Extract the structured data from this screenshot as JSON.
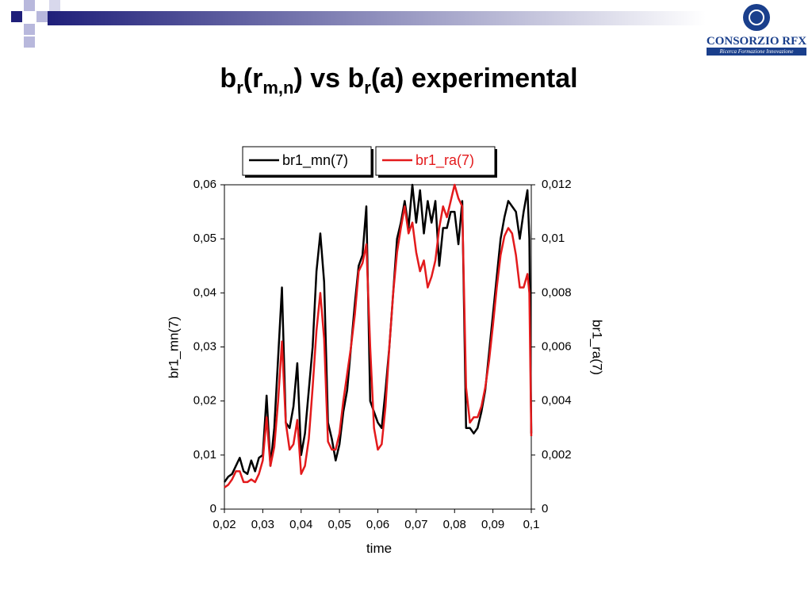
{
  "logo": {
    "name": "CONSORZIO RFX",
    "tagline": "Ricerca Formazione Innovazione"
  },
  "chart_data": {
    "type": "line",
    "title_parts": [
      {
        "text": "b"
      },
      {
        "text": "r",
        "sub": true
      },
      {
        "text": "(r"
      },
      {
        "text": "m,n",
        "sub": true
      },
      {
        "text": ") vs b"
      },
      {
        "text": "r",
        "sub": true
      },
      {
        "text": "(a)  experimental"
      }
    ],
    "xlabel": "time",
    "ylabel": "br1_mn(7)",
    "y2label": "br1_ra(7)",
    "legend": "top",
    "x": [
      0.02,
      0.021,
      0.022,
      0.023,
      0.024,
      0.025,
      0.026,
      0.027,
      0.028,
      0.029,
      0.03,
      0.031,
      0.032,
      0.033,
      0.034,
      0.035,
      0.036,
      0.037,
      0.038,
      0.039,
      0.04,
      0.041,
      0.042,
      0.043,
      0.044,
      0.045,
      0.046,
      0.047,
      0.048,
      0.049,
      0.05,
      0.051,
      0.052,
      0.053,
      0.054,
      0.055,
      0.056,
      0.057,
      0.058,
      0.059,
      0.06,
      0.061,
      0.062,
      0.063,
      0.064,
      0.065,
      0.066,
      0.067,
      0.068,
      0.069,
      0.07,
      0.071,
      0.072,
      0.073,
      0.074,
      0.075,
      0.076,
      0.077,
      0.078,
      0.079,
      0.08,
      0.081,
      0.082,
      0.083,
      0.084,
      0.085,
      0.086,
      0.087,
      0.088,
      0.089,
      0.09,
      0.091,
      0.092,
      0.093,
      0.094,
      0.095,
      0.096,
      0.097,
      0.098,
      0.099,
      0.0995,
      0.1
    ],
    "series": [
      {
        "name": "br1_mn(7)",
        "color": "#000000",
        "axis": "y",
        "values": [
          0.005,
          0.006,
          0.0065,
          0.008,
          0.0095,
          0.007,
          0.0065,
          0.009,
          0.007,
          0.0095,
          0.01,
          0.021,
          0.008,
          0.015,
          0.028,
          0.041,
          0.016,
          0.015,
          0.019,
          0.027,
          0.01,
          0.014,
          0.022,
          0.03,
          0.044,
          0.051,
          0.042,
          0.016,
          0.013,
          0.009,
          0.012,
          0.018,
          0.022,
          0.03,
          0.038,
          0.045,
          0.047,
          0.056,
          0.02,
          0.018,
          0.016,
          0.015,
          0.022,
          0.03,
          0.04,
          0.05,
          0.053,
          0.057,
          0.052,
          0.06,
          0.053,
          0.059,
          0.051,
          0.057,
          0.053,
          0.057,
          0.045,
          0.052,
          0.052,
          0.055,
          0.055,
          0.049,
          0.057,
          0.015,
          0.015,
          0.014,
          0.015,
          0.018,
          0.022,
          0.029,
          0.036,
          0.043,
          0.05,
          0.054,
          0.057,
          0.056,
          0.055,
          0.05,
          0.055,
          0.059,
          0.05,
          0.014
        ]
      },
      {
        "name": "br1_ra(7)",
        "color": "#e31a1c",
        "axis": "y2",
        "values": [
          0.0008,
          0.0009,
          0.0011,
          0.0014,
          0.0014,
          0.001,
          0.001,
          0.0011,
          0.001,
          0.0013,
          0.0018,
          0.0034,
          0.0016,
          0.0023,
          0.004,
          0.0062,
          0.0032,
          0.0022,
          0.0024,
          0.0033,
          0.0013,
          0.0016,
          0.0026,
          0.0045,
          0.0066,
          0.008,
          0.0063,
          0.0025,
          0.0022,
          0.0022,
          0.0028,
          0.004,
          0.005,
          0.006,
          0.0072,
          0.0088,
          0.0091,
          0.0098,
          0.006,
          0.003,
          0.0022,
          0.0024,
          0.0038,
          0.006,
          0.008,
          0.0095,
          0.0104,
          0.0112,
          0.0102,
          0.0106,
          0.0095,
          0.0088,
          0.0092,
          0.0082,
          0.0086,
          0.0092,
          0.0104,
          0.0112,
          0.0108,
          0.0114,
          0.012,
          0.0115,
          0.0112,
          0.0045,
          0.0032,
          0.0034,
          0.0034,
          0.0038,
          0.0045,
          0.0055,
          0.0068,
          0.0082,
          0.0094,
          0.0101,
          0.0104,
          0.0102,
          0.0094,
          0.0082,
          0.0082,
          0.0087,
          0.008,
          0.0027
        ]
      }
    ],
    "xlim": [
      0.02,
      0.1
    ],
    "xticks": [
      {
        "value": 0.02,
        "label": "0,02"
      },
      {
        "value": 0.03,
        "label": "0,03"
      },
      {
        "value": 0.04,
        "label": "0,04"
      },
      {
        "value": 0.05,
        "label": "0,05"
      },
      {
        "value": 0.06,
        "label": "0,06"
      },
      {
        "value": 0.07,
        "label": "0,07"
      },
      {
        "value": 0.08,
        "label": "0,08"
      },
      {
        "value": 0.09,
        "label": "0,09"
      },
      {
        "value": 0.1,
        "label": "0,1"
      }
    ],
    "ylim": [
      0,
      0.06
    ],
    "yticks": [
      0,
      {
        "value": 0.01,
        "label": "0,01"
      },
      {
        "value": 0.02,
        "label": "0,02"
      },
      {
        "value": 0.03,
        "label": "0,03"
      },
      {
        "value": 0.04,
        "label": "0,04"
      },
      {
        "value": 0.05,
        "label": "0,05"
      },
      {
        "value": 0.06,
        "label": "0,06"
      }
    ],
    "y2lim": [
      0,
      0.012
    ],
    "y2ticks": [
      0,
      {
        "value": 0.002,
        "label": "0,002"
      },
      {
        "value": 0.004,
        "label": "0,004"
      },
      {
        "value": 0.006,
        "label": "0,006"
      },
      {
        "value": 0.008,
        "label": "0,008"
      },
      {
        "value": 0.01,
        "label": "0,01"
      },
      {
        "value": 0.012,
        "label": "0,012"
      }
    ],
    "grid": false
  }
}
